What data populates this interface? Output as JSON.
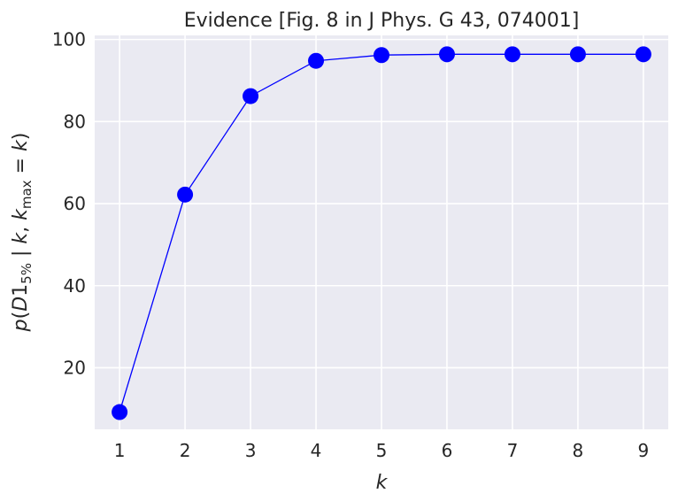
{
  "chart_data": {
    "type": "line",
    "title": "Evidence [Fig. 8 in J Phys. G 43, 074001]",
    "xlabel": {
      "main": "k"
    },
    "ylabel": {
      "p": "p",
      "open": "(",
      "D": "D",
      "one": "1",
      "sub": "5%",
      "bar": " | ",
      "k1": "k",
      "comma": ", ",
      "k2": "k",
      "sub2": "max",
      "eq": " = ",
      "k3": "k",
      "close": ")"
    },
    "x": [
      1,
      2,
      3,
      4,
      5,
      6,
      7,
      8,
      9
    ],
    "series": [
      {
        "values": [
          9.2,
          62.2,
          86.2,
          94.8,
          96.2,
          96.4,
          96.4,
          96.4,
          96.4
        ],
        "color": "#0000ff",
        "marker": "circle"
      }
    ],
    "xlim": [
      0.62,
      9.38
    ],
    "ylim": [
      5,
      101
    ],
    "xticks": [
      "1",
      "2",
      "3",
      "4",
      "5",
      "6",
      "7",
      "8",
      "9"
    ],
    "yticks": [
      "20",
      "40",
      "60",
      "80",
      "100"
    ],
    "ytick_values": [
      20,
      40,
      60,
      80,
      100
    ],
    "grid": true,
    "background": "#eaeaf2",
    "grid_color": "#ffffff"
  }
}
